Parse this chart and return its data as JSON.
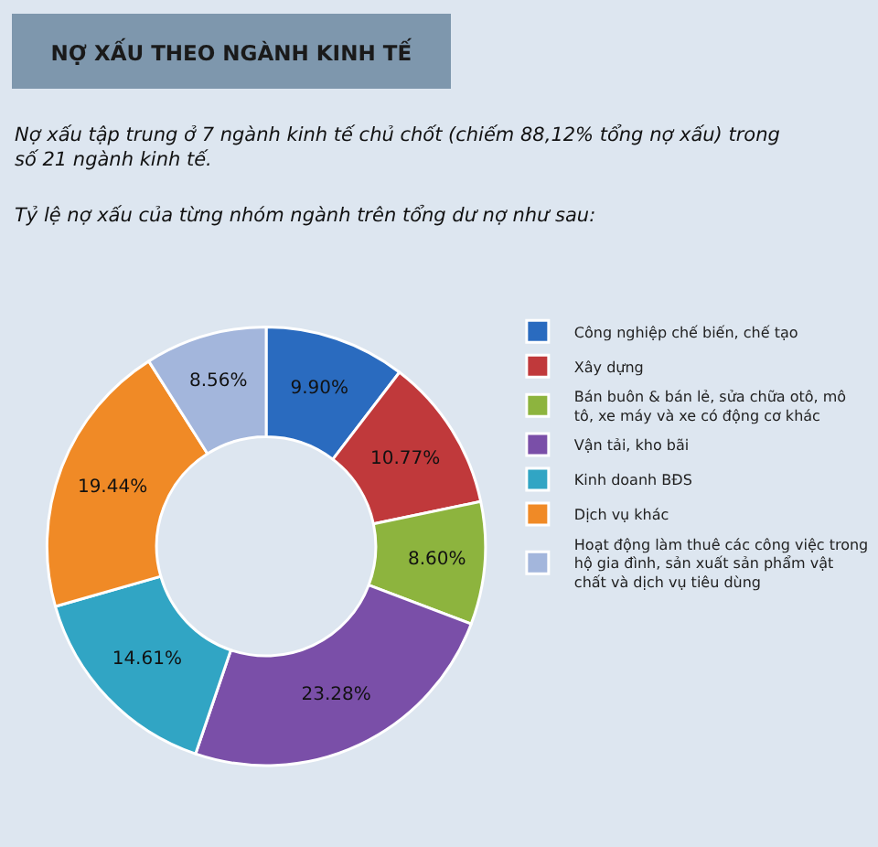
{
  "chart_data": {
    "type": "donut",
    "title": "NỢ XẤU THEO NGÀNH KINH TẾ",
    "subtitle": "Nợ xấu tập trung ở 7 ngành kinh tế chủ chốt (chiếm 88,12% tổng nợ xấu) trong số 21 ngành kinh tế.",
    "annotations": [
      "Tỷ lệ nợ xấu của từng nhóm ngành trên tổng dư nợ như sau:"
    ],
    "categories": [
      "Công nghiệp chế biến, chế tạo",
      "Xây dựng",
      "Bán buôn & bán lẻ, sửa chữa otô, mô tô, xe máy và xe có động cơ khác",
      "Vận tải, kho bãi",
      "Kinh doanh BĐS",
      "Dịch vụ khác",
      "Hoạt động làm thuê các công việc trong hộ gia đình, sản xuất sản phẩm vật chất và dịch vụ tiêu dùng"
    ],
    "values": [
      9.9,
      10.77,
      8.6,
      23.28,
      14.61,
      19.44,
      8.56
    ],
    "value_labels": [
      "9.90%",
      "10.77%",
      "8.60%",
      "23.28%",
      "14.61%",
      "19.44%",
      "8.56%"
    ],
    "colors": [
      "#2a6bbf",
      "#c0393b",
      "#8db43e",
      "#7a4fa8",
      "#31a5c4",
      "#f08a26",
      "#a3b6dc"
    ],
    "legend": "right"
  }
}
